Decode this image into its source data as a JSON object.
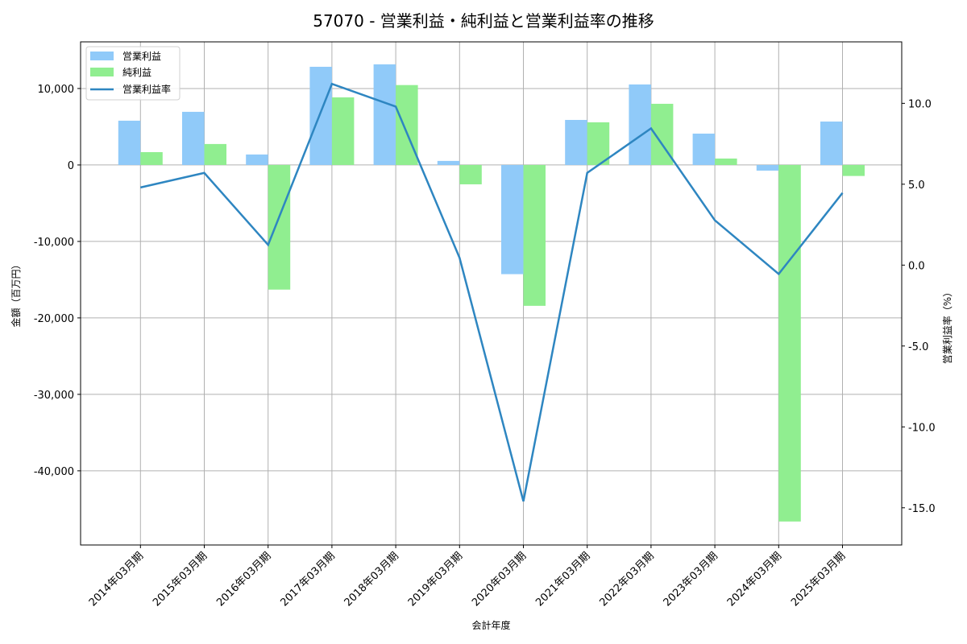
{
  "title": "57070 - 営業利益・純利益と営業利益率の推移",
  "chart_data": {
    "type": "bar",
    "title": "57070 - 営業利益・純利益と営業利益率の推移",
    "xlabel": "会計年度",
    "ylabel": "金額（百万円）",
    "ylabel_right": "営業利益率（%）",
    "categories": [
      "2014年03月期",
      "2015年03月期",
      "2016年03月期",
      "2017年03月期",
      "2018年03月期",
      "2019年03月期",
      "2020年03月期",
      "2021年03月期",
      "2022年03月期",
      "2023年03月期",
      "2024年03月期",
      "2025年03月期"
    ],
    "series": [
      {
        "name": "営業利益",
        "type": "bar",
        "axis": "left",
        "color": "#90CAF9",
        "values": [
          5790,
          6950,
          1370,
          12840,
          13160,
          530,
          -14280,
          5890,
          10530,
          4100,
          -740,
          5680
        ]
      },
      {
        "name": "純利益",
        "type": "bar",
        "axis": "left",
        "color": "#90EE90",
        "values": [
          1680,
          2740,
          -16300,
          8840,
          10450,
          -2530,
          -18420,
          5580,
          8000,
          840,
          -46630,
          -1440
        ]
      },
      {
        "name": "営業利益率",
        "type": "line",
        "axis": "right",
        "color": "#2E86C1",
        "values": [
          4.8,
          5.7,
          1.25,
          11.2,
          9.8,
          0.45,
          -14.6,
          5.7,
          8.45,
          2.77,
          -0.55,
          4.46
        ]
      }
    ],
    "ylim": [
      -49700,
      16100
    ],
    "ylim_right": [
      -17.3,
      13.8
    ],
    "yticks": [
      10000,
      0,
      -10000,
      -20000,
      -30000,
      -40000
    ],
    "ytick_labels": [
      "10,000",
      "0",
      "-10,000",
      "-20,000",
      "-30,000",
      "-40,000"
    ],
    "yticks_right": [
      10.0,
      5.0,
      0.0,
      -5.0,
      -10.0,
      -15.0
    ],
    "ytick_labels_right": [
      "10.0",
      "5.0",
      "0.0",
      "-5.0",
      "-10.0",
      "-15.0"
    ],
    "grid": true,
    "legend_position": "upper left"
  }
}
